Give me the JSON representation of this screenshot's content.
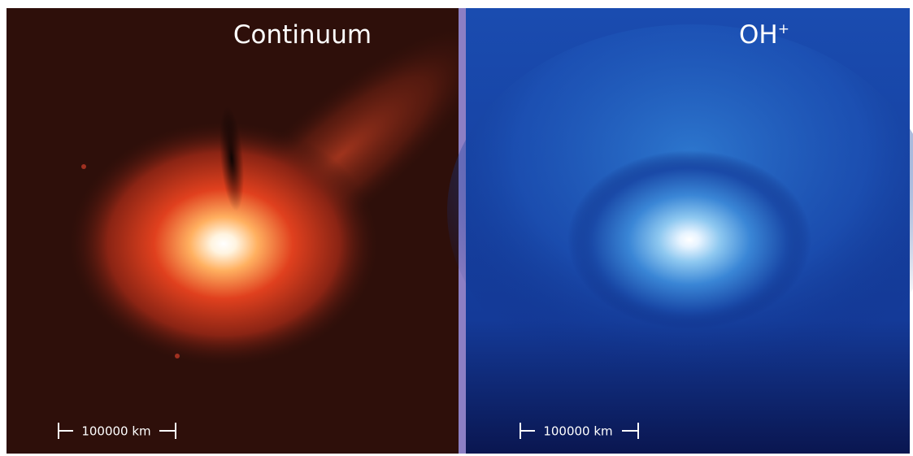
{
  "panels": [
    {
      "title": "Continuum",
      "scale_label": "100000 km"
    },
    {
      "title": "OH",
      "title_superscript": "+",
      "scale_label": "100000 km"
    }
  ]
}
